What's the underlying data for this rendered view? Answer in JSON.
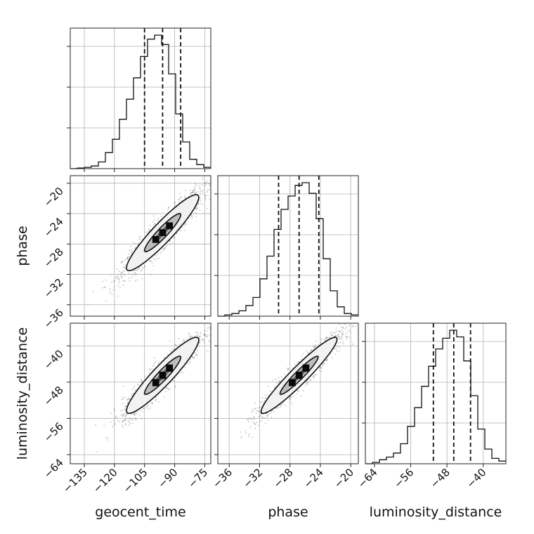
{
  "chart_data": {
    "type": "corner",
    "parameters": [
      "geocent_time",
      "phase",
      "luminosity_distance"
    ],
    "axes": {
      "geocent_time": {
        "label": "geocent_time",
        "range": [
          -142,
          -72
        ],
        "ticks": [
          -135,
          -120,
          -105,
          -90,
          -75
        ],
        "tick_labels": [
          "−135",
          "−120",
          "−105",
          "−90",
          "−75"
        ]
      },
      "phase": {
        "label": "phase",
        "range": [
          -37.5,
          -19
        ],
        "ticks": [
          -36,
          -32,
          -28,
          -24,
          -20
        ],
        "tick_labels": [
          "−36",
          "−32",
          "−28",
          "−24",
          "−20"
        ]
      },
      "luminosity_distance": {
        "label": "luminosity_distance",
        "range": [
          -66,
          -35
        ],
        "ticks": [
          -64,
          -56,
          -48,
          -40
        ],
        "tick_labels": [
          "−64",
          "−56",
          "−48",
          "−40"
        ]
      }
    },
    "histograms": {
      "geocent_time": {
        "bin_edges": [
          -142,
          -138.5,
          -135,
          -131.5,
          -128,
          -124.5,
          -121,
          -117.5,
          -114,
          -110.5,
          -107,
          -103.5,
          -100,
          -96.5,
          -93,
          -89.5,
          -86,
          -82.5,
          -79,
          -75.5,
          -72
        ],
        "counts": [
          0,
          0.005,
          0.01,
          0.02,
          0.05,
          0.12,
          0.22,
          0.37,
          0.52,
          0.68,
          0.84,
          0.97,
          1.0,
          0.93,
          0.71,
          0.41,
          0.2,
          0.07,
          0.03,
          0.01
        ],
        "quantiles": [
          -105,
          -96,
          -87
        ]
      },
      "phase": {
        "bin_edges": [
          -37.5,
          -36.575,
          -35.65,
          -34.725,
          -33.8,
          -32.875,
          -31.95,
          -31.025,
          -30.1,
          -29.175,
          -28.25,
          -27.325,
          -26.4,
          -25.475,
          -24.55,
          -23.625,
          -22.7,
          -21.775,
          -20.85,
          -19.925,
          -19
        ],
        "counts": [
          0,
          0.01,
          0.02,
          0.04,
          0.08,
          0.14,
          0.28,
          0.45,
          0.65,
          0.8,
          0.9,
          0.98,
          1.0,
          0.92,
          0.73,
          0.43,
          0.19,
          0.07,
          0.02,
          0.01
        ],
        "quantiles": [
          -29.5,
          -26.8,
          -24.2
        ]
      },
      "luminosity_distance": {
        "bin_edges": [
          -66,
          -64.45,
          -62.9,
          -61.35,
          -59.8,
          -58.25,
          -56.7,
          -55.15,
          -53.6,
          -52.05,
          -50.5,
          -48.95,
          -47.4,
          -45.85,
          -44.3,
          -42.75,
          -41.2,
          -39.65,
          -38.1,
          -36.55,
          -35
        ],
        "counts": [
          0,
          0.01,
          0.03,
          0.05,
          0.08,
          0.15,
          0.28,
          0.42,
          0.58,
          0.73,
          0.86,
          0.94,
          1.0,
          0.95,
          0.77,
          0.51,
          0.26,
          0.11,
          0.04,
          0.02
        ],
        "quantiles": [
          -51,
          -46.5,
          -42.8
        ]
      }
    },
    "contours_2d": [
      {
        "x": "geocent_time",
        "y": "phase",
        "center": [
          -96,
          -26.5
        ],
        "sd": [
          9,
          2.5
        ],
        "rho": 0.93,
        "levels_sigma": [
          1,
          2
        ]
      },
      {
        "x": "geocent_time",
        "y": "luminosity_distance",
        "center": [
          -96,
          -46.5
        ],
        "sd": [
          9,
          4.2
        ],
        "rho": 0.93,
        "levels_sigma": [
          1,
          2
        ]
      },
      {
        "x": "phase",
        "y": "luminosity_distance",
        "center": [
          -26.8,
          -46.5
        ],
        "sd": [
          2.5,
          4.2
        ],
        "rho": 0.95,
        "levels_sigma": [
          1,
          2
        ]
      }
    ],
    "grid": true,
    "colors": {
      "line": "#111111",
      "points": "#555555",
      "grid": "#b0b0b0"
    }
  }
}
